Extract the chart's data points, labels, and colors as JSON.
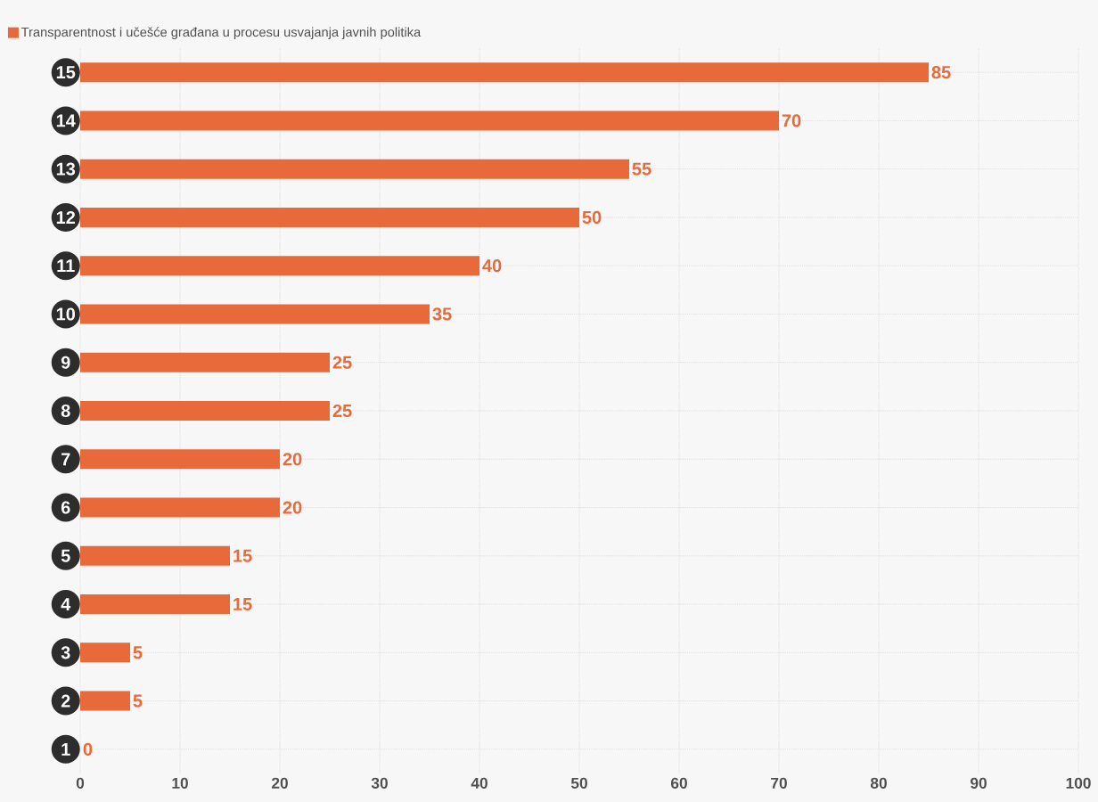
{
  "chart_data": {
    "type": "bar",
    "orientation": "horizontal",
    "categories": [
      "15",
      "14",
      "13",
      "12",
      "11",
      "10",
      "9",
      "8",
      "7",
      "6",
      "5",
      "4",
      "3",
      "2",
      "1"
    ],
    "series": [
      {
        "name": "Transparentnost i učešće građana u procesu usvajanja javnih politika",
        "color": "#e8693a",
        "values": [
          85,
          70,
          55,
          50,
          40,
          35,
          25,
          25,
          20,
          20,
          15,
          15,
          5,
          5,
          0
        ]
      }
    ],
    "xlim": [
      0,
      100
    ],
    "xticks": [
      0,
      10,
      20,
      30,
      40,
      50,
      60,
      70,
      80,
      90,
      100
    ],
    "grid": true,
    "legend": "top left",
    "data_labels": true
  }
}
